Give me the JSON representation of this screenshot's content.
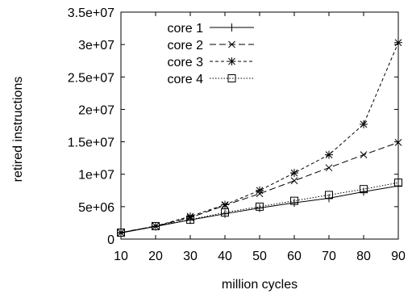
{
  "chart_data": {
    "type": "line",
    "title": "",
    "xlabel": "million cycles",
    "ylabel": "retired instructions",
    "xlim": [
      10,
      90
    ],
    "ylim": [
      0,
      35000000
    ],
    "xticks": [
      10,
      20,
      30,
      40,
      50,
      60,
      70,
      80,
      90
    ],
    "yticks": [
      0,
      5000000,
      10000000,
      15000000,
      20000000,
      25000000,
      30000000,
      35000000
    ],
    "xtick_labels": [
      "10",
      "20",
      "30",
      "40",
      "50",
      "60",
      "70",
      "80",
      "90"
    ],
    "ytick_labels": [
      "0",
      "5e+06",
      "1e+07",
      "1.5e+07",
      "2e+07",
      "2.5e+07",
      "3e+07",
      "3.5e+07"
    ],
    "grid": false,
    "legend_position": "top-left",
    "x": [
      10,
      20,
      30,
      40,
      50,
      60,
      70,
      80,
      90
    ],
    "series": [
      {
        "name": "core 1",
        "marker": "plus",
        "dash": "solid",
        "color": "#000000",
        "values": [
          950000,
          1950000,
          2950000,
          3900000,
          4800000,
          5600000,
          6300000,
          7300000,
          8200000
        ]
      },
      {
        "name": "core 2",
        "marker": "cross",
        "dash": "dashed",
        "color": "#000000",
        "values": [
          1000000,
          2000000,
          3300000,
          5200000,
          7000000,
          9000000,
          11000000,
          13000000,
          14900000
        ]
      },
      {
        "name": "core 3",
        "marker": "asterisk",
        "dash": "short-dashed",
        "color": "#000000",
        "values": [
          1000000,
          2000000,
          3500000,
          5300000,
          7500000,
          10200000,
          13000000,
          17700000,
          30300000
        ]
      },
      {
        "name": "core 4",
        "marker": "box",
        "dash": "dotted",
        "color": "#000000",
        "values": [
          1000000,
          2000000,
          3000000,
          4100000,
          5000000,
          5900000,
          6800000,
          7700000,
          8700000
        ]
      }
    ]
  }
}
